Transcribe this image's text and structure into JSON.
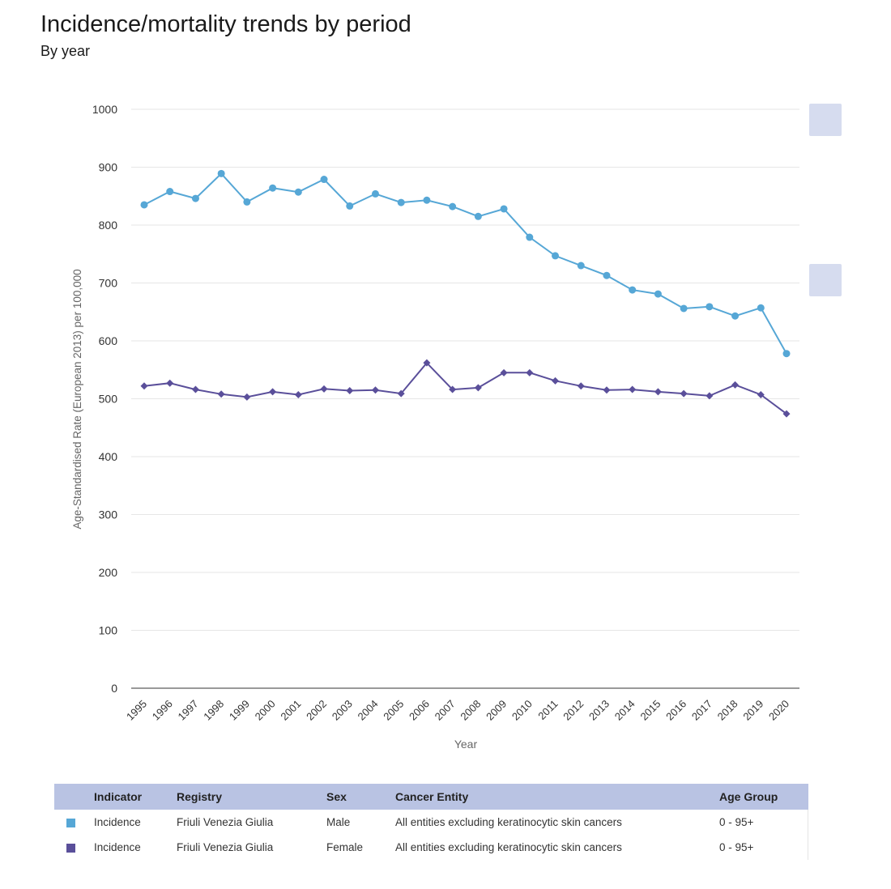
{
  "header": {
    "title": "Incidence/mortality trends by period",
    "subtitle": "By year"
  },
  "chart_data": {
    "type": "line",
    "xlabel": "Year",
    "ylabel": "Age-Standardised Rate (European 2013) per 100,000",
    "ylim": [
      0,
      1000
    ],
    "yticks": [
      0,
      100,
      200,
      300,
      400,
      500,
      600,
      700,
      800,
      900,
      1000
    ],
    "grid": true,
    "x": [
      "1995",
      "1996",
      "1997",
      "1998",
      "1999",
      "2000",
      "2001",
      "2002",
      "2003",
      "2004",
      "2005",
      "2006",
      "2007",
      "2008",
      "2009",
      "2010",
      "2011",
      "2012",
      "2013",
      "2014",
      "2015",
      "2016",
      "2017",
      "2018",
      "2019",
      "2020"
    ],
    "series": [
      {
        "color": "#56a7d6",
        "marker": "circle",
        "values": [
          835,
          858,
          846,
          889,
          840,
          864,
          857,
          879,
          833,
          854,
          839,
          843,
          832,
          815,
          828,
          779,
          747,
          730,
          713,
          688,
          681,
          656,
          659,
          643,
          657,
          578
        ]
      },
      {
        "color": "#5a4f9a",
        "marker": "diamond",
        "values": [
          522,
          527,
          516,
          508,
          503,
          512,
          507,
          517,
          514,
          515,
          509,
          562,
          516,
          519,
          545,
          545,
          531,
          522,
          515,
          516,
          512,
          509,
          505,
          524,
          507,
          474
        ]
      }
    ]
  },
  "legend": {
    "headers": [
      "Indicator",
      "Registry",
      "Sex",
      "Cancer Entity",
      "Age Group"
    ],
    "rows": [
      {
        "color": "#56a7d6",
        "indicator": "Incidence",
        "registry": "Friuli Venezia Giulia",
        "sex": "Male",
        "entity": "All entities excluding keratinocytic skin cancers",
        "age": "0 - 95+"
      },
      {
        "color": "#5a4f9a",
        "indicator": "Incidence",
        "registry": "Friuli Venezia Giulia",
        "sex": "Female",
        "entity": "All entities excluding keratinocytic skin cancers",
        "age": "0 - 95+"
      }
    ]
  }
}
